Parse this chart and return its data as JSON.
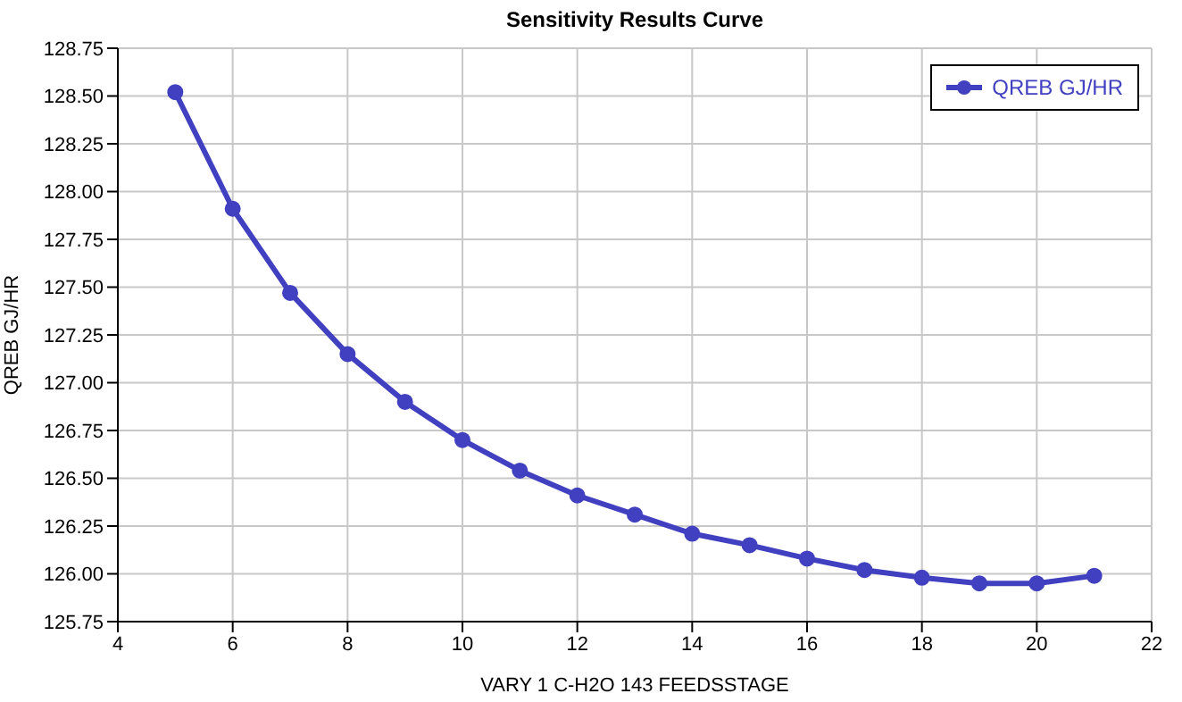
{
  "chart_data": {
    "type": "line",
    "title": "Sensitivity Results Curve",
    "xlabel": "VARY   1 C-H2O 143 FEEDSSTAGE",
    "ylabel": "QREB GJ/HR",
    "x": [
      5,
      6,
      7,
      8,
      9,
      10,
      11,
      12,
      13,
      14,
      15,
      16,
      17,
      18,
      19,
      20,
      21
    ],
    "series": [
      {
        "name": "QREB GJ/HR",
        "color": "#4040c0",
        "values": [
          128.52,
          127.91,
          127.47,
          127.15,
          126.9,
          126.7,
          126.54,
          126.41,
          126.31,
          126.21,
          126.15,
          126.08,
          126.02,
          125.98,
          125.95,
          125.95,
          125.99
        ]
      }
    ],
    "xlim": [
      4,
      22
    ],
    "xticks": [
      4,
      6,
      8,
      10,
      12,
      14,
      16,
      18,
      20,
      22
    ],
    "ylim": [
      125.75,
      128.75
    ],
    "yticks": [
      125.75,
      {
        "value": 126,
        "label": "126.00"
      },
      126.25,
      {
        "value": 126.5,
        "label": "126.50"
      },
      126.75,
      {
        "value": 127,
        "label": "127.00"
      },
      127.25,
      {
        "value": 127.5,
        "label": "127.50"
      },
      127.75,
      {
        "value": 128,
        "label": "128.00"
      },
      128.25,
      {
        "value": 128.5,
        "label": "128.50"
      },
      128.75
    ],
    "grid": true,
    "legend": "top right",
    "marker": "circle",
    "line_style": "solid"
  }
}
